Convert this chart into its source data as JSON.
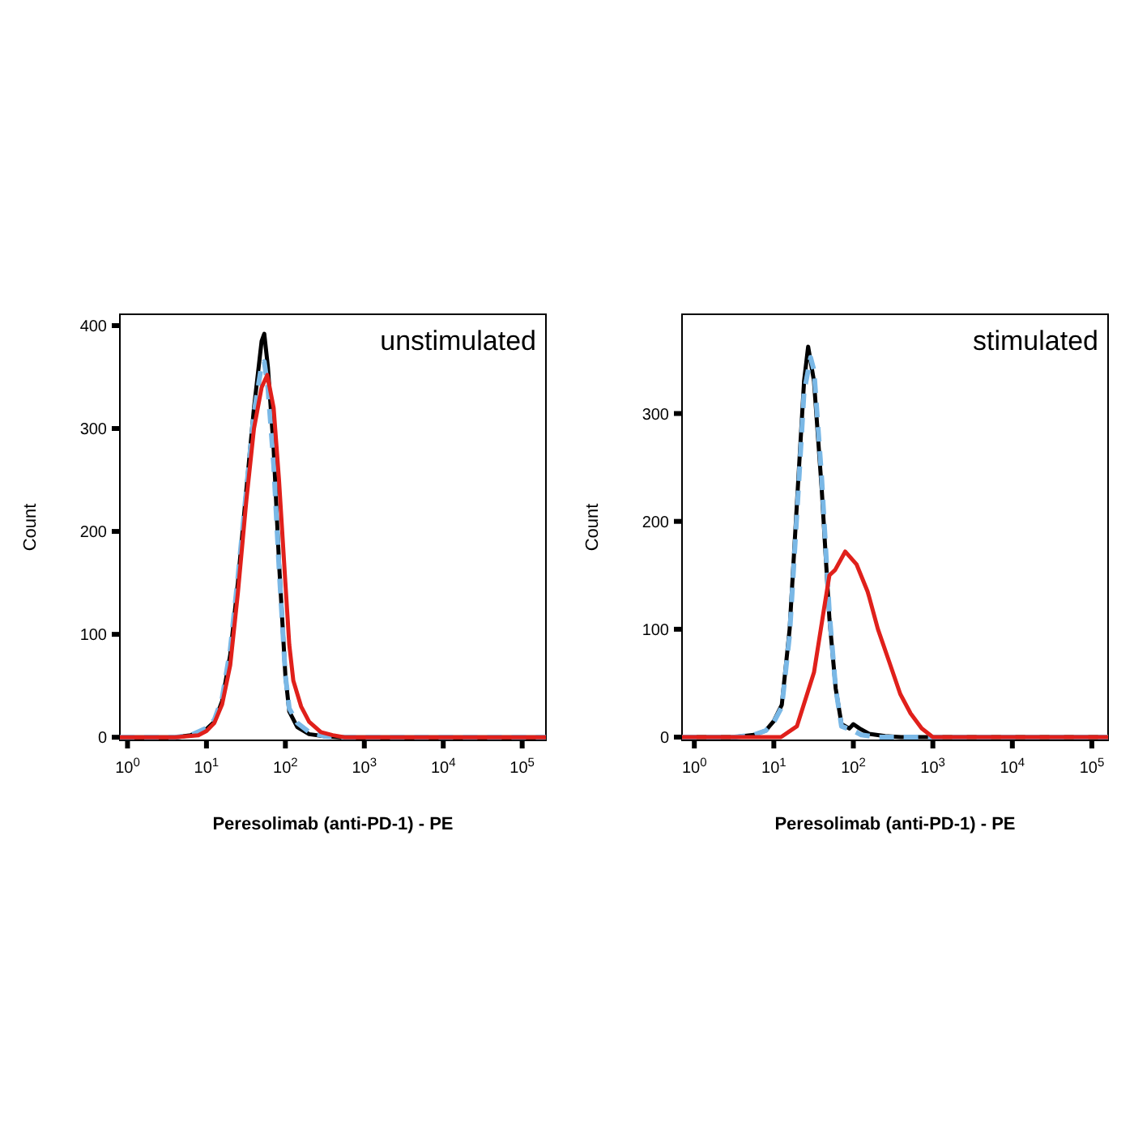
{
  "chart_data": [
    {
      "type": "line",
      "title": "unstimulated",
      "xlabel": "Peresolimab (anti-PD-1) - PE",
      "ylabel": "Count",
      "log": "x",
      "xlim": [
        0.8,
        200000
      ],
      "ylim": [
        -3,
        411
      ],
      "xticks": [
        {
          "value": 1,
          "label": "10$^{0}$"
        },
        {
          "value": 10,
          "label": "10$^{1}$"
        },
        {
          "value": 100,
          "label": "10$^{2}$"
        },
        {
          "value": 1000,
          "label": "10$^{3}$"
        },
        {
          "value": 10000,
          "label": "10$^{4}$"
        },
        {
          "value": 100000,
          "label": "10$^{5}$"
        }
      ],
      "yticks": [
        0,
        100,
        200,
        300,
        400
      ],
      "series": [
        {
          "color": "#000000",
          "line_style": "solid",
          "x": [
            0.8,
            4,
            6.3,
            10,
            12.6,
            15.8,
            20,
            25,
            32,
            40,
            50,
            54,
            60,
            71,
            83,
            100,
            112,
            141,
            200,
            316,
            501,
            200000
          ],
          "values": [
            0,
            0,
            2,
            8,
            15,
            35,
            80,
            150,
            240,
            320,
            385,
            392,
            360,
            280,
            170,
            60,
            25,
            10,
            3,
            1,
            0,
            0
          ]
        },
        {
          "color": "#7ab8e6",
          "line_style": "dashed",
          "x": [
            0.8,
            4,
            6.3,
            10,
            12.6,
            15.8,
            20,
            25,
            32,
            40,
            50,
            54,
            60,
            71,
            83,
            100,
            112,
            141,
            200,
            316,
            501,
            200000
          ],
          "values": [
            0,
            0,
            2,
            9,
            17,
            38,
            85,
            155,
            240,
            315,
            362,
            365,
            340,
            265,
            165,
            60,
            28,
            14,
            5,
            1,
            0,
            0
          ]
        },
        {
          "color": "#e0201b",
          "line_style": "solid",
          "x": [
            0.8,
            4,
            7.9,
            10,
            12.6,
            15.8,
            20,
            25,
            32,
            40,
            50,
            59,
            71,
            83,
            100,
            112,
            126,
            158,
            200,
            282,
            398,
            562,
            200000
          ],
          "values": [
            0,
            0,
            2,
            6,
            14,
            32,
            70,
            140,
            230,
            300,
            340,
            352,
            320,
            250,
            150,
            90,
            55,
            30,
            15,
            5,
            2,
            0,
            0
          ]
        }
      ]
    },
    {
      "type": "line",
      "title": "stimulated",
      "xlabel": "Peresolimab (anti-PD-1) - PE",
      "ylabel": "Count",
      "log": "x",
      "xlim": [
        0.7,
        160000
      ],
      "ylim": [
        -3,
        392
      ],
      "xticks": [
        {
          "value": 1,
          "label": "10$^{0}$"
        },
        {
          "value": 10,
          "label": "10$^{1}$"
        },
        {
          "value": 100,
          "label": "10$^{2}$"
        },
        {
          "value": 1000,
          "label": "10$^{3}$"
        },
        {
          "value": 10000,
          "label": "10$^{4}$"
        },
        {
          "value": 100000,
          "label": "10$^{5}$"
        }
      ],
      "yticks": [
        0,
        100,
        200,
        300
      ],
      "series": [
        {
          "color": "#000000",
          "line_style": "solid",
          "x": [
            0.7,
            3.2,
            5.6,
            7.9,
            10,
            12.6,
            15.8,
            20,
            24,
            27,
            32,
            40,
            50,
            60,
            71,
            89,
            100,
            120,
            158,
            251,
            398,
            160000
          ],
          "values": [
            0,
            0,
            2,
            6,
            15,
            30,
            100,
            230,
            330,
            362,
            330,
            230,
            110,
            45,
            12,
            8,
            12,
            8,
            3,
            1,
            0,
            0
          ]
        },
        {
          "color": "#7ab8e6",
          "line_style": "dashed",
          "x": [
            0.7,
            3.2,
            5.6,
            7.9,
            10,
            12.6,
            15.8,
            20,
            24,
            29,
            32,
            40,
            50,
            60,
            71,
            100,
            126,
            200,
            160000
          ],
          "values": [
            0,
            0,
            2,
            6,
            14,
            28,
            95,
            220,
            320,
            352,
            340,
            240,
            115,
            45,
            10,
            6,
            2,
            0,
            0
          ]
        },
        {
          "color": "#e0201b",
          "line_style": "solid",
          "x": [
            0.7,
            12.3,
            19.5,
            32,
            43,
            50,
            59,
            79,
            110,
            151,
            158,
            204,
            282,
            389,
            525,
            724,
            1000,
            160000
          ],
          "values": [
            0,
            0,
            10,
            60,
            120,
            150,
            155,
            172,
            160,
            135,
            130,
            100,
            70,
            40,
            22,
            8,
            0,
            0
          ]
        }
      ]
    }
  ]
}
